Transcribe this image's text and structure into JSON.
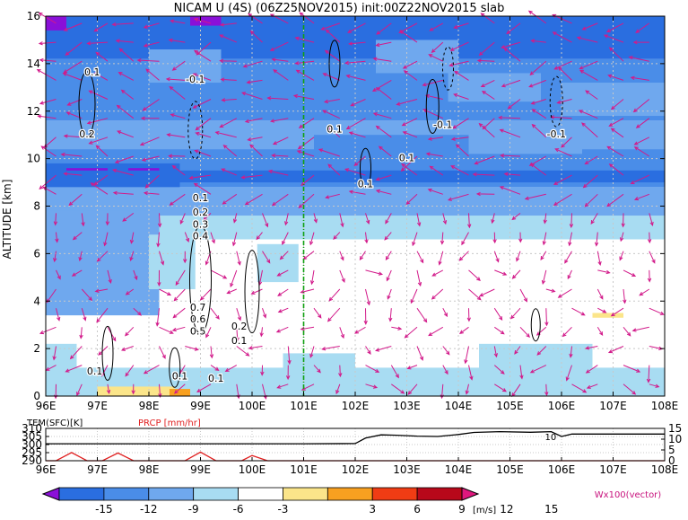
{
  "chart_data": [
    {
      "type": "heatmap",
      "title": "NICAM U (4S) (06Z25NOV2015) init:00Z22NOV2015 slab",
      "ylabel": "ALTITUDE [km]",
      "xlim": [
        96,
        108
      ],
      "ylim": [
        0,
        16
      ],
      "x_ticks": [
        "96E",
        "97E",
        "98E",
        "99E",
        "100E",
        "101E",
        "102E",
        "103E",
        "104E",
        "105E",
        "106E",
        "107E",
        "108E"
      ],
      "y_ticks": [
        "0",
        "2",
        "4",
        "6",
        "8",
        "10",
        "12",
        "14",
        "16"
      ],
      "marker_line_x": 101,
      "contour_labels": [
        {
          "text": "0.1",
          "x": 96.9,
          "y": 13.5
        },
        {
          "text": "0.2",
          "x": 96.8,
          "y": 10.9
        },
        {
          "text": "-0.1",
          "x": 98.9,
          "y": 13.2
        },
        {
          "text": "0.1",
          "x": 101.6,
          "y": 11.1
        },
        {
          "text": "-0.1",
          "x": 103.7,
          "y": 11.3
        },
        {
          "text": "0.1",
          "x": 103.0,
          "y": 9.9
        },
        {
          "text": "-0.1",
          "x": 105.9,
          "y": 10.9
        },
        {
          "text": "0.1",
          "x": 102.2,
          "y": 8.8
        },
        {
          "text": "0.1",
          "x": 99.0,
          "y": 8.2
        },
        {
          "text": "0.2",
          "x": 99.0,
          "y": 7.6
        },
        {
          "text": "0.3",
          "x": 99.0,
          "y": 7.1
        },
        {
          "text": "0.4",
          "x": 99.0,
          "y": 6.6
        },
        {
          "text": "0.7",
          "x": 98.95,
          "y": 3.6
        },
        {
          "text": "0.6",
          "x": 98.95,
          "y": 3.1
        },
        {
          "text": "0.5",
          "x": 98.95,
          "y": 2.6
        },
        {
          "text": "0.2",
          "x": 99.75,
          "y": 2.8
        },
        {
          "text": "0.1",
          "x": 99.75,
          "y": 2.2
        },
        {
          "text": "0.1",
          "x": 96.95,
          "y": 0.9
        },
        {
          "text": "0.1",
          "x": 98.6,
          "y": 0.7
        },
        {
          "text": "0.1",
          "x": 99.3,
          "y": 0.6
        }
      ],
      "vector_label": "Wx100(vector)",
      "colorbar": {
        "unit": "[m/s]",
        "labels": [
          "-15",
          "-12",
          "-9",
          "-6",
          "-3",
          "3",
          "6",
          "9",
          "12",
          "15"
        ],
        "colors": [
          "#8a10d8",
          "#2a6ee0",
          "#4a8de8",
          "#6fa8ee",
          "#a8dcf2",
          "#ffffff",
          "#fbe58a",
          "#f8a020",
          "#f03c14",
          "#b8081a",
          "#e0187e"
        ]
      }
    },
    {
      "type": "line",
      "xlim": [
        96,
        108
      ],
      "x_ticks": [
        "96E",
        "97E",
        "98E",
        "99E",
        "100E",
        "101E",
        "102E",
        "103E",
        "104E",
        "105E",
        "106E",
        "107E",
        "108E"
      ],
      "left_axis": {
        "label": "TEM(SFC)[K]",
        "ticks": [
          "290",
          "295",
          "300",
          "305",
          "310"
        ],
        "range": [
          290,
          310
        ]
      },
      "right_axis": {
        "label": "PRCP [mm/hr]",
        "ticks": [
          "0",
          "5",
          "10",
          "15"
        ],
        "range": [
          0,
          15
        ]
      },
      "line_label": "10",
      "series": [
        {
          "color": "#000000",
          "x": [
            96.0,
            100.0,
            101.0,
            102.0,
            102.2,
            102.5,
            102.8,
            103.2,
            103.6,
            104.0,
            104.3,
            104.8,
            105.4,
            105.8,
            106.0,
            106.2,
            108.0
          ],
          "values": [
            300.5,
            300.5,
            300.5,
            300.6,
            304,
            306,
            305.8,
            305.2,
            305.0,
            306.2,
            307.5,
            308.0,
            307.6,
            308.0,
            305,
            306.5,
            306.5
          ]
        },
        {
          "color": "#e02020",
          "x": [
            96.0,
            96.2,
            96.5,
            96.8,
            97.1,
            97.4,
            97.7,
            98.7,
            99.0,
            99.3,
            99.8,
            100.0,
            100.3,
            108.0
          ],
          "values": [
            0,
            0,
            3.8,
            0,
            0,
            3.6,
            0,
            0,
            4.0,
            0,
            0,
            2.4,
            0,
            0
          ]
        }
      ]
    }
  ]
}
